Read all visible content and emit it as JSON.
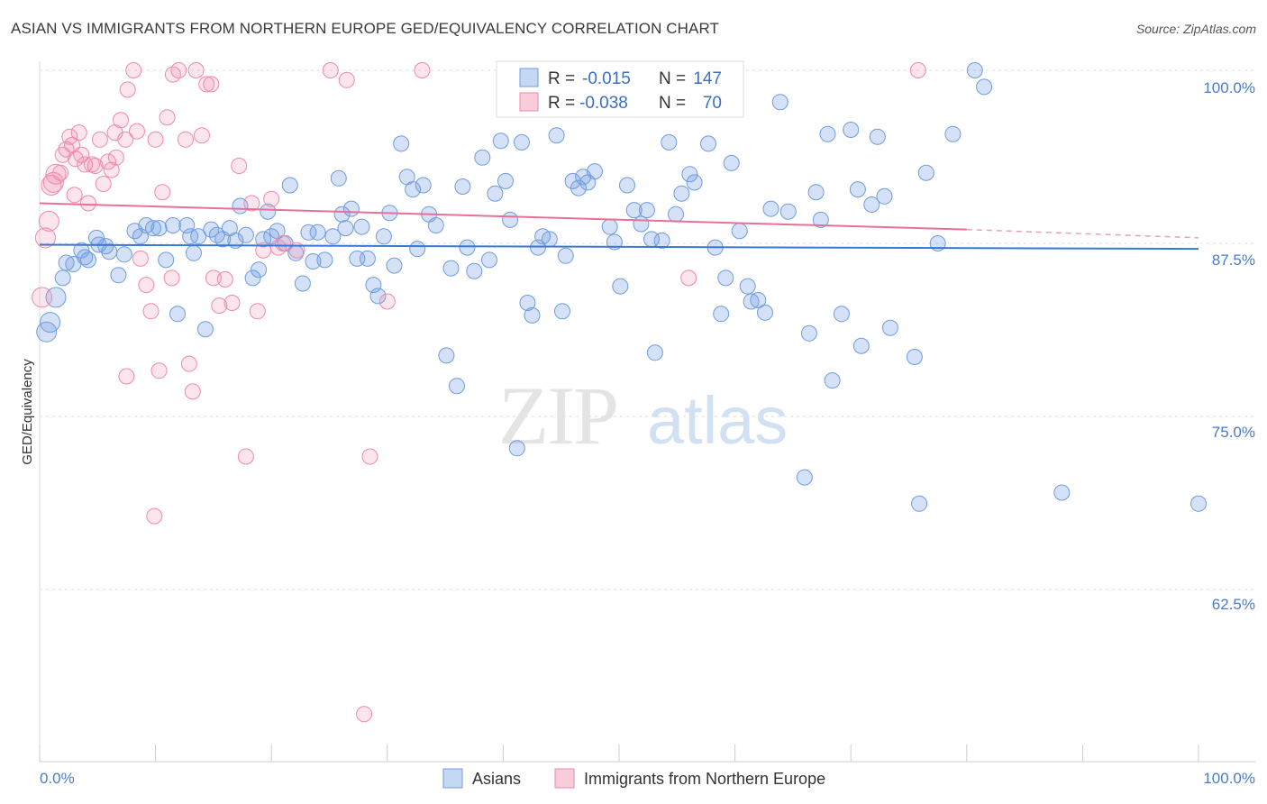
{
  "header": {
    "title": "ASIAN VS IMMIGRANTS FROM NORTHERN EUROPE GED/EQUIVALENCY CORRELATION CHART",
    "source": "Source: ZipAtlas.com"
  },
  "watermark": {
    "zip": "ZIP",
    "atlas": "atlas"
  },
  "legend": {
    "r_label": "R =",
    "n_label": "N =",
    "rows": [
      {
        "name": "Asians",
        "r": "-0.015",
        "n": "147",
        "color": "#6f9de0"
      },
      {
        "name": "Immigrants from Northern Europe",
        "r": "-0.038",
        "n": "70",
        "color": "#f08aaa"
      }
    ]
  },
  "chart_data": {
    "type": "scatter",
    "title": "ASIAN VS IMMIGRANTS FROM NORTHERN EUROPE GED/EQUIVALENCY CORRELATION CHART",
    "xlabel": "",
    "ylabel": "GED/Equivalency",
    "x_tick_labels": [
      "0.0%",
      "100.0%"
    ],
    "y_tick_labels": [
      "100.0%",
      "87.5%",
      "75.0%",
      "62.5%"
    ],
    "xlim": [
      0,
      100
    ],
    "ylim": [
      52.5,
      102.0
    ],
    "y_ticks": [
      100.0,
      87.5,
      75.0,
      62.5
    ],
    "grid": true,
    "legend_position": "top-center",
    "series": [
      {
        "name": "Asians",
        "color": "#6f9de0",
        "trend": {
          "x": [
            0,
            100
          ],
          "y": [
            87.4,
            87.1
          ]
        },
        "points": [
          [
            0.6,
            81.1
          ],
          [
            0.9,
            81.8
          ],
          [
            1.4,
            83.6
          ],
          [
            2.0,
            85.0
          ],
          [
            2.3,
            86.1
          ],
          [
            2.9,
            86.0
          ],
          [
            3.6,
            87.0
          ],
          [
            3.9,
            86.5
          ],
          [
            4.2,
            86.3
          ],
          [
            4.9,
            87.9
          ],
          [
            5.1,
            87.4
          ],
          [
            5.7,
            87.3
          ],
          [
            6.0,
            86.9
          ],
          [
            6.8,
            85.2
          ],
          [
            7.3,
            86.7
          ],
          [
            8.2,
            88.4
          ],
          [
            8.7,
            88.0
          ],
          [
            9.2,
            88.8
          ],
          [
            9.8,
            88.6
          ],
          [
            10.3,
            88.6
          ],
          [
            10.9,
            86.3
          ],
          [
            11.5,
            88.8
          ],
          [
            11.9,
            82.4
          ],
          [
            12.7,
            88.8
          ],
          [
            13.0,
            88.0
          ],
          [
            13.3,
            86.8
          ],
          [
            13.7,
            88.0
          ],
          [
            14.3,
            81.3
          ],
          [
            14.8,
            88.5
          ],
          [
            15.3,
            88.1
          ],
          [
            15.8,
            87.8
          ],
          [
            16.4,
            88.6
          ],
          [
            16.9,
            87.7
          ],
          [
            17.3,
            90.2
          ],
          [
            17.8,
            88.1
          ],
          [
            18.4,
            85.0
          ],
          [
            18.9,
            85.6
          ],
          [
            19.3,
            87.8
          ],
          [
            19.7,
            89.8
          ],
          [
            20.0,
            88.0
          ],
          [
            20.5,
            88.4
          ],
          [
            21.2,
            87.5
          ],
          [
            21.6,
            91.7
          ],
          [
            22.1,
            86.8
          ],
          [
            22.7,
            84.6
          ],
          [
            23.2,
            88.3
          ],
          [
            23.6,
            86.2
          ],
          [
            24.0,
            88.3
          ],
          [
            24.6,
            86.3
          ],
          [
            25.3,
            88.0
          ],
          [
            25.8,
            92.2
          ],
          [
            26.1,
            89.6
          ],
          [
            26.4,
            88.6
          ],
          [
            26.9,
            90.0
          ],
          [
            27.4,
            86.4
          ],
          [
            27.8,
            88.7
          ],
          [
            28.3,
            86.4
          ],
          [
            28.8,
            84.5
          ],
          [
            29.2,
            83.7
          ],
          [
            29.7,
            88.0
          ],
          [
            30.2,
            89.7
          ],
          [
            30.6,
            85.9
          ],
          [
            31.2,
            94.7
          ],
          [
            31.7,
            92.3
          ],
          [
            32.2,
            91.4
          ],
          [
            32.6,
            87.1
          ],
          [
            33.1,
            91.7
          ],
          [
            33.6,
            89.6
          ],
          [
            34.2,
            88.8
          ],
          [
            35.1,
            79.4
          ],
          [
            35.5,
            85.7
          ],
          [
            36.0,
            77.2
          ],
          [
            36.5,
            91.6
          ],
          [
            36.9,
            87.2
          ],
          [
            37.5,
            85.5
          ],
          [
            38.2,
            93.7
          ],
          [
            38.8,
            86.3
          ],
          [
            39.3,
            91.1
          ],
          [
            39.8,
            94.9
          ],
          [
            40.2,
            92.0
          ],
          [
            40.6,
            89.2
          ],
          [
            41.2,
            72.7
          ],
          [
            41.6,
            94.8
          ],
          [
            42.1,
            83.2
          ],
          [
            42.5,
            82.3
          ],
          [
            43.0,
            87.2
          ],
          [
            43.4,
            88.0
          ],
          [
            44.0,
            87.8
          ],
          [
            44.6,
            95.3
          ],
          [
            45.1,
            82.6
          ],
          [
            45.4,
            86.6
          ],
          [
            46.0,
            92.0
          ],
          [
            46.5,
            91.5
          ],
          [
            46.9,
            92.3
          ],
          [
            47.3,
            91.9
          ],
          [
            47.9,
            92.7
          ],
          [
            49.2,
            88.7
          ],
          [
            49.6,
            87.6
          ],
          [
            50.1,
            84.4
          ],
          [
            50.7,
            91.7
          ],
          [
            51.3,
            89.9
          ],
          [
            51.9,
            88.9
          ],
          [
            52.4,
            89.9
          ],
          [
            52.8,
            87.8
          ],
          [
            53.1,
            79.6
          ],
          [
            53.7,
            87.7
          ],
          [
            54.3,
            94.8
          ],
          [
            54.9,
            89.6
          ],
          [
            55.4,
            91.1
          ],
          [
            56.1,
            92.5
          ],
          [
            56.5,
            91.9
          ],
          [
            57.2,
            97.2
          ],
          [
            57.7,
            94.7
          ],
          [
            58.3,
            87.2
          ],
          [
            58.8,
            82.4
          ],
          [
            59.2,
            85.0
          ],
          [
            59.7,
            93.3
          ],
          [
            60.4,
            88.4
          ],
          [
            61.1,
            84.4
          ],
          [
            61.4,
            83.3
          ],
          [
            62.0,
            83.4
          ],
          [
            62.6,
            82.5
          ],
          [
            63.1,
            90.0
          ],
          [
            63.9,
            97.7
          ],
          [
            64.6,
            89.8
          ],
          [
            66.0,
            70.6
          ],
          [
            66.4,
            81.0
          ],
          [
            67.0,
            91.2
          ],
          [
            67.4,
            89.2
          ],
          [
            68.0,
            95.4
          ],
          [
            68.4,
            77.6
          ],
          [
            69.2,
            82.4
          ],
          [
            70.0,
            95.7
          ],
          [
            70.6,
            91.4
          ],
          [
            70.9,
            80.1
          ],
          [
            71.8,
            90.3
          ],
          [
            72.3,
            95.2
          ],
          [
            72.9,
            90.9
          ],
          [
            73.4,
            81.4
          ],
          [
            75.5,
            79.3
          ],
          [
            75.9,
            68.7
          ],
          [
            76.5,
            92.6
          ],
          [
            77.5,
            87.5
          ],
          [
            78.8,
            95.4
          ],
          [
            80.7,
            100.0
          ],
          [
            81.5,
            98.8
          ],
          [
            88.2,
            69.5
          ],
          [
            100.0,
            68.7
          ]
        ]
      },
      {
        "name": "Immigrants from Northern Europe",
        "color": "#f08aaa",
        "trend": {
          "x": [
            0,
            80
          ],
          "y": [
            90.4,
            88.5
          ]
        },
        "trend_dashed": {
          "x": [
            80,
            100
          ],
          "y": [
            88.5,
            87.9
          ]
        },
        "points": [
          [
            0.2,
            83.6
          ],
          [
            0.5,
            87.9
          ],
          [
            0.8,
            89.1
          ],
          [
            1.0,
            91.7
          ],
          [
            1.4,
            92.5
          ],
          [
            1.8,
            92.6
          ],
          [
            2.0,
            93.9
          ],
          [
            2.3,
            94.3
          ],
          [
            2.6,
            95.2
          ],
          [
            2.8,
            94.6
          ],
          [
            3.1,
            93.6
          ],
          [
            3.4,
            95.5
          ],
          [
            3.6,
            93.9
          ],
          [
            3.9,
            93.2
          ],
          [
            4.2,
            90.4
          ],
          [
            4.5,
            93.2
          ],
          [
            4.8,
            93.1
          ],
          [
            5.2,
            95.0
          ],
          [
            5.5,
            91.8
          ],
          [
            5.9,
            93.4
          ],
          [
            6.2,
            92.8
          ],
          [
            6.6,
            93.7
          ],
          [
            7.0,
            96.4
          ],
          [
            7.4,
            95.0
          ],
          [
            7.6,
            98.6
          ],
          [
            8.1,
            100.0
          ],
          [
            8.4,
            95.6
          ],
          [
            8.7,
            86.4
          ],
          [
            9.2,
            84.5
          ],
          [
            9.6,
            82.6
          ],
          [
            10.0,
            95.0
          ],
          [
            10.3,
            78.3
          ],
          [
            10.6,
            91.2
          ],
          [
            11.0,
            96.6
          ],
          [
            11.4,
            85.0
          ],
          [
            12.0,
            100.0
          ],
          [
            12.6,
            95.0
          ],
          [
            12.9,
            78.8
          ],
          [
            13.2,
            76.8
          ],
          [
            13.5,
            100.0
          ],
          [
            14.0,
            95.3
          ],
          [
            14.4,
            99.0
          ],
          [
            15.0,
            85.0
          ],
          [
            15.5,
            83.0
          ],
          [
            16.0,
            84.9
          ],
          [
            16.6,
            83.2
          ],
          [
            17.2,
            93.1
          ],
          [
            17.8,
            72.1
          ],
          [
            18.3,
            90.4
          ],
          [
            18.8,
            82.6
          ],
          [
            19.3,
            87.0
          ],
          [
            20.0,
            90.7
          ],
          [
            20.6,
            87.2
          ],
          [
            21.0,
            87.5
          ],
          [
            22.2,
            87.0
          ],
          [
            25.1,
            100.0
          ],
          [
            26.5,
            99.3
          ],
          [
            28.0,
            53.5
          ],
          [
            28.5,
            72.1
          ],
          [
            30.0,
            83.3
          ],
          [
            33.0,
            100.0
          ],
          [
            56.0,
            85.0
          ],
          [
            75.8,
            100.0
          ],
          [
            9.9,
            67.8
          ],
          [
            7.5,
            77.9
          ],
          [
            11.5,
            99.7
          ],
          [
            14.8,
            99.0
          ],
          [
            3.0,
            91.0
          ],
          [
            6.5,
            95.5
          ],
          [
            1.2,
            91.9
          ]
        ]
      }
    ]
  }
}
